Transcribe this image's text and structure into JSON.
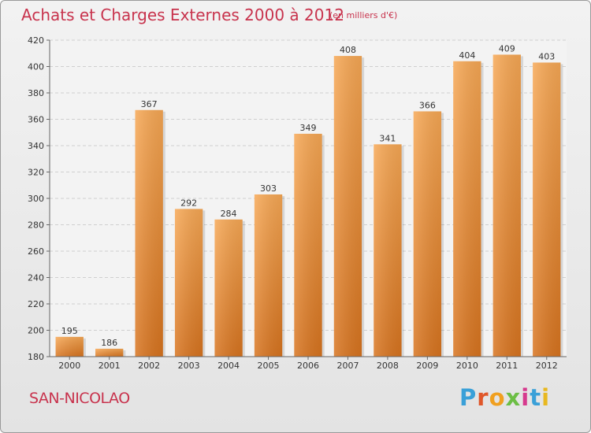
{
  "header": {
    "title": "Achats et Charges Externes 2000 à 2012",
    "subtitle": "(en milliers d'€)"
  },
  "footer": {
    "commune": "SAN-NICOLAO",
    "logo_text": "Proxiti",
    "logo_colors": [
      "#3aa0d8",
      "#e0572a",
      "#f0a020",
      "#6cbe45",
      "#d63a8e",
      "#3aa0d8",
      "#e8b820"
    ]
  },
  "chart_data": {
    "type": "bar",
    "title": "Achats et Charges Externes 2000 à 2012",
    "subtitle": "(en milliers d'€)",
    "categories": [
      "2000",
      "2001",
      "2002",
      "2003",
      "2004",
      "2005",
      "2006",
      "2007",
      "2008",
      "2009",
      "2010",
      "2011",
      "2012"
    ],
    "values": [
      195,
      186,
      367,
      292,
      284,
      303,
      349,
      408,
      341,
      366,
      404,
      409,
      403
    ],
    "ylim": [
      180,
      420
    ],
    "yticks": [
      180,
      200,
      220,
      240,
      260,
      280,
      300,
      320,
      340,
      360,
      380,
      400,
      420
    ],
    "grid": true,
    "bar_color_top": "#f7a855",
    "bar_color_bottom": "#d8741f",
    "legend": "none"
  }
}
